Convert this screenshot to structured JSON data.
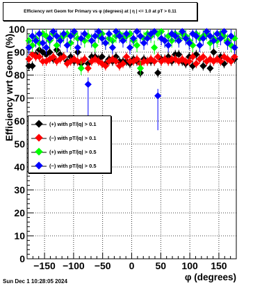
{
  "title": "Efficiency wrt Geom for Primary vs φ (degrees) at | η | <= 1.0 at pT > 0.11",
  "timestamp": "Sun Dec  1 10:28:05 2024",
  "chart_data": {
    "type": "scatter",
    "title": "Efficiency wrt Geom for Primary vs φ (degrees) at | η | <= 1.0 at pT > 0.11",
    "xlabel": "φ (degrees)",
    "ylabel": "Efficiency wrt Geom (%)",
    "xlim": [
      -180,
      180
    ],
    "ylim": [
      0,
      100
    ],
    "x_ticks": [
      -150,
      -100,
      -50,
      0,
      50,
      100,
      150
    ],
    "x_tick_labels": [
      "−150",
      "−100",
      "−50",
      "0",
      "50",
      "100",
      "150"
    ],
    "y_ticks": [
      0,
      10,
      20,
      30,
      40,
      50,
      60,
      70,
      80,
      90,
      100
    ],
    "y_tick_labels": [
      "0",
      "10",
      "20",
      "30",
      "40",
      "50",
      "60",
      "70",
      "80",
      "90",
      "100"
    ],
    "grid": true,
    "legend_position": "center-left",
    "series": [
      {
        "name": "(+) with pT/|q| > 0.1",
        "color": "#000000",
        "x": [
          -177,
          -171,
          -165,
          -159,
          -153,
          -147,
          -141,
          -135,
          -129,
          -123,
          -117,
          -111,
          -105,
          -99,
          -93,
          -87,
          -81,
          -75,
          -69,
          -63,
          -57,
          -51,
          -45,
          -39,
          -33,
          -27,
          -21,
          -15,
          -9,
          -3,
          3,
          9,
          15,
          21,
          27,
          33,
          39,
          45,
          51,
          57,
          63,
          69,
          75,
          81,
          87,
          93,
          99,
          105,
          111,
          117,
          123,
          129,
          135,
          141,
          147,
          153,
          159,
          165,
          171,
          177
        ],
        "y": [
          84,
          84,
          89,
          91,
          90,
          89,
          90,
          87,
          91,
          89,
          88,
          86,
          88,
          86,
          90,
          85,
          87,
          85,
          88,
          88,
          87,
          88,
          85,
          87,
          86,
          88,
          86,
          86,
          86,
          85,
          87,
          86,
          81,
          87,
          86,
          86,
          86,
          81,
          87,
          87,
          88,
          86,
          89,
          89,
          86,
          85,
          88,
          84,
          89,
          87,
          84,
          86,
          83,
          90,
          87,
          88,
          85,
          87,
          86,
          87
        ],
        "err": [
          2,
          2,
          2,
          2,
          2,
          2,
          2,
          2,
          2,
          2,
          2,
          2,
          2,
          2,
          2,
          2,
          2,
          2,
          2,
          2,
          2,
          2,
          2,
          2,
          2,
          2,
          2,
          2,
          2,
          2,
          2,
          2,
          2,
          2,
          2,
          2,
          2,
          2,
          2,
          2,
          2,
          2,
          2,
          2,
          2,
          2,
          2,
          2,
          2,
          2,
          2,
          2,
          2,
          2,
          2,
          2,
          2,
          2,
          2,
          2
        ]
      },
      {
        "name": "(−) with pT/|q| > 0.1",
        "color": "#ff0000",
        "x": [
          -177,
          -171,
          -165,
          -159,
          -153,
          -147,
          -141,
          -135,
          -129,
          -123,
          -117,
          -111,
          -105,
          -99,
          -93,
          -87,
          -81,
          -75,
          -69,
          -63,
          -57,
          -51,
          -45,
          -39,
          -33,
          -27,
          -21,
          -15,
          -9,
          -3,
          3,
          9,
          15,
          21,
          27,
          33,
          39,
          45,
          51,
          57,
          63,
          69,
          75,
          81,
          87,
          93,
          99,
          105,
          111,
          117,
          123,
          129,
          135,
          141,
          147,
          153,
          159,
          165,
          171,
          177
        ],
        "y": [
          87,
          89,
          88,
          88,
          86,
          86,
          87,
          88,
          86,
          87,
          88,
          85,
          86,
          87,
          86,
          86,
          87,
          83,
          86,
          87,
          86,
          85,
          84,
          86,
          87,
          86,
          84,
          85,
          88,
          86,
          86,
          87,
          85,
          86,
          86,
          87,
          86,
          88,
          86,
          87,
          86,
          87,
          87,
          86,
          87,
          86,
          86,
          88,
          85,
          87,
          88,
          86,
          87,
          86,
          87,
          86,
          88,
          87,
          86,
          88
        ],
        "err": [
          2,
          2,
          2,
          2,
          2,
          2,
          2,
          2,
          2,
          2,
          2,
          2,
          2,
          2,
          2,
          2,
          2,
          2,
          2,
          2,
          2,
          2,
          2,
          2,
          2,
          2,
          2,
          2,
          2,
          2,
          2,
          2,
          2,
          2,
          2,
          2,
          2,
          2,
          2,
          2,
          2,
          2,
          2,
          2,
          2,
          2,
          2,
          2,
          2,
          2,
          2,
          2,
          2,
          2,
          2,
          2,
          2,
          2,
          2,
          2
        ]
      },
      {
        "name": "(+) with pT/|q| > 0.5",
        "color": "#00ff00",
        "x": [
          -177,
          -171,
          -165,
          -159,
          -153,
          -147,
          -141,
          -135,
          -129,
          -123,
          -117,
          -111,
          -105,
          -99,
          -93,
          -87,
          -81,
          -75,
          -69,
          -63,
          -57,
          -51,
          -45,
          -39,
          -33,
          -27,
          -21,
          -15,
          -9,
          -3,
          3,
          9,
          15,
          21,
          27,
          33,
          39,
          45,
          51,
          57,
          63,
          69,
          75,
          81,
          87,
          93,
          99,
          105,
          111,
          117,
          123,
          129,
          135,
          141,
          147,
          153,
          159,
          165,
          171,
          177
        ],
        "y": [
          95,
          93,
          96,
          94,
          98,
          97,
          95,
          98,
          93,
          96,
          97,
          98,
          94,
          98,
          96,
          83,
          95,
          97,
          95,
          93,
          97,
          98,
          94,
          96,
          95,
          97,
          98,
          96,
          97,
          98,
          95,
          93,
          83,
          96,
          98,
          97,
          92,
          98,
          99,
          95,
          97,
          95,
          98,
          96,
          98,
          97,
          95,
          93,
          98,
          96,
          97,
          98,
          94,
          96,
          95,
          98,
          97,
          95,
          93,
          96
        ],
        "err": [
          3,
          3,
          3,
          3,
          3,
          3,
          3,
          3,
          3,
          3,
          3,
          3,
          3,
          3,
          3,
          3,
          3,
          3,
          3,
          3,
          3,
          3,
          3,
          3,
          3,
          3,
          3,
          3,
          3,
          3,
          3,
          3,
          3,
          3,
          3,
          3,
          3,
          3,
          3,
          3,
          3,
          3,
          3,
          3,
          3,
          3,
          3,
          3,
          3,
          3,
          3,
          3,
          3,
          3,
          3,
          3,
          3,
          3,
          3,
          3
        ]
      },
      {
        "name": "(−) with pT/|q| > 0.5",
        "color": "#0000ff",
        "x": [
          -177,
          -171,
          -165,
          -159,
          -153,
          -147,
          -141,
          -135,
          -129,
          -123,
          -117,
          -111,
          -105,
          -99,
          -93,
          -87,
          -81,
          -75,
          -69,
          -63,
          -57,
          -51,
          -45,
          -39,
          -33,
          -27,
          -21,
          -15,
          -9,
          -3,
          3,
          9,
          15,
          21,
          27,
          33,
          39,
          45,
          51,
          57,
          63,
          69,
          75,
          81,
          87,
          93,
          99,
          105,
          111,
          117,
          123,
          129,
          135,
          141,
          147,
          153,
          159,
          165,
          171,
          177
        ],
        "y": [
          92,
          97,
          95,
          98,
          94,
          92,
          96,
          99,
          97,
          95,
          98,
          93,
          97,
          99,
          92,
          96,
          98,
          76,
          95,
          97,
          99,
          96,
          94,
          98,
          92,
          99,
          97,
          95,
          98,
          92,
          96,
          99,
          97,
          94,
          96,
          98,
          99,
          71,
          96,
          95,
          93,
          98,
          97,
          95,
          99,
          96,
          94,
          98,
          97,
          93,
          96,
          99,
          97,
          95,
          98,
          96,
          99,
          94,
          97,
          92
        ],
        "err": [
          3,
          3,
          3,
          3,
          3,
          3,
          3,
          3,
          3,
          3,
          3,
          3,
          3,
          3,
          3,
          3,
          3,
          3,
          3,
          3,
          3,
          3,
          3,
          3,
          3,
          3,
          3,
          3,
          3,
          3,
          3,
          3,
          3,
          3,
          3,
          3,
          3,
          3,
          3,
          3,
          3,
          3,
          3,
          3,
          3,
          3,
          3,
          3,
          3,
          3,
          3,
          3,
          3,
          3,
          3,
          3,
          3,
          3,
          3,
          3
        ]
      }
    ]
  }
}
